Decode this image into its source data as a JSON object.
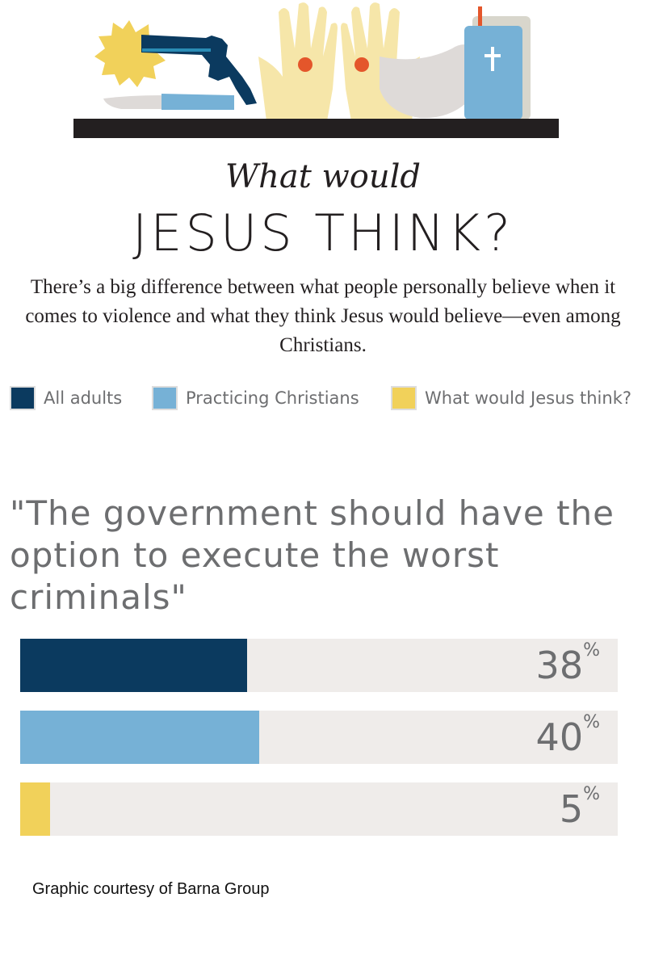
{
  "header": {
    "subtitle": "What would",
    "title": "JESUS THINK?",
    "intro": "There’s a big difference between what people personally believe when it comes to violence and what they think Jesus would believe—even among Christians."
  },
  "legend": [
    {
      "label": "All adults",
      "color": "#0b3a5f"
    },
    {
      "label": "Practicing Christians",
      "color": "#76b1d6"
    },
    {
      "label": "What would Jesus think?",
      "color": "#f1d15a"
    }
  ],
  "chart_data": {
    "type": "bar",
    "orientation": "horizontal",
    "title": "\"The government should have the option to execute the worst criminals\"",
    "categories": [
      "All adults",
      "Practicing Christians",
      "What would Jesus think?"
    ],
    "values": [
      38,
      40,
      5
    ],
    "value_labels": [
      "38",
      "40",
      "5"
    ],
    "unit": "%",
    "xlim": [
      0,
      100
    ],
    "colors": [
      "#0b3a5f",
      "#76b1d6",
      "#f1d15a"
    ],
    "track_color": "#efecea",
    "grid": false,
    "legend_position": "top"
  },
  "credit": "Graphic courtesy of Barna Group"
}
